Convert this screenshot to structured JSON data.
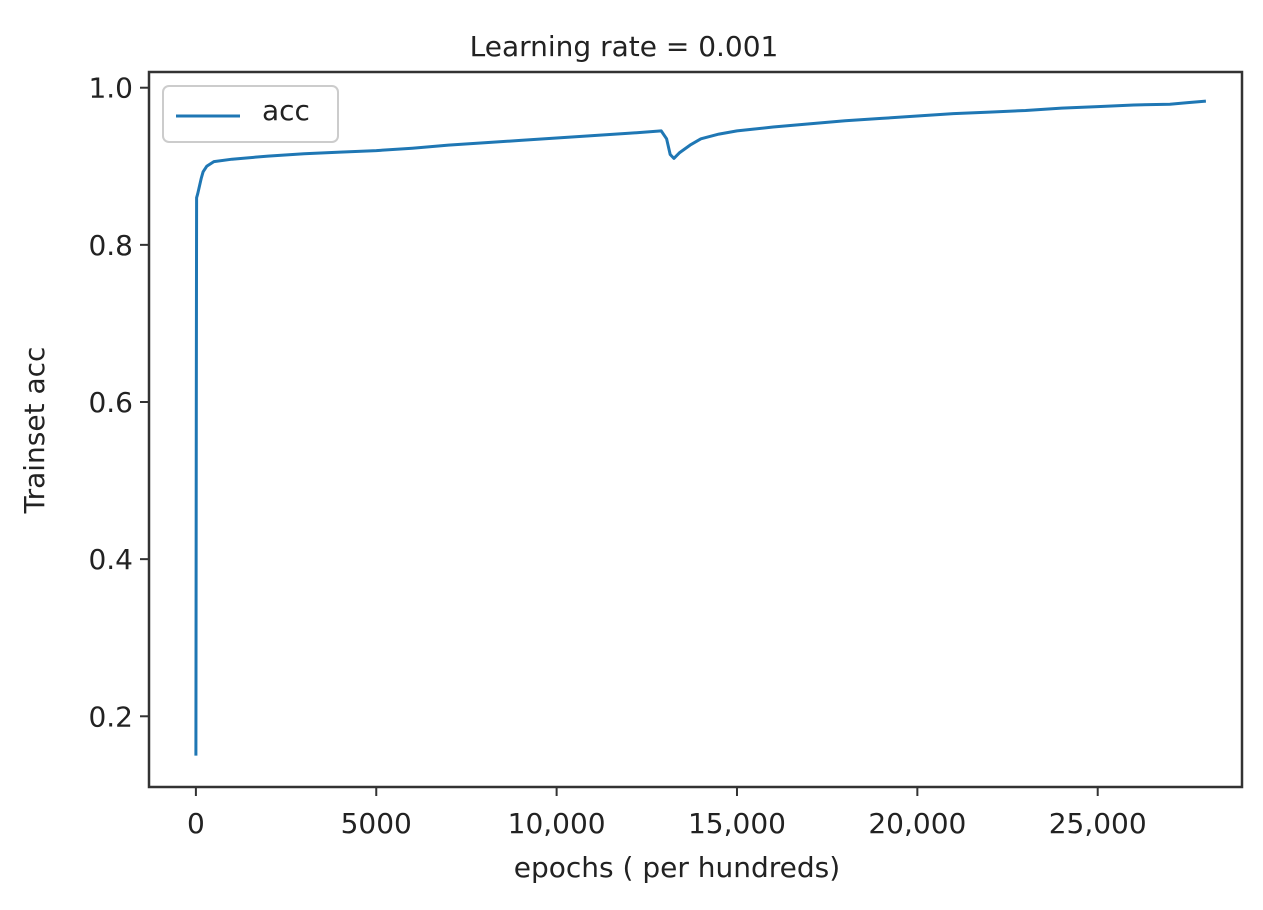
{
  "chart_data": {
    "type": "line",
    "title": "Learning rate = 0.001",
    "xlabel": "epochs ( per hundreds)",
    "ylabel": "Trainset acc",
    "xlim": [
      -1300,
      29000
    ],
    "ylim": [
      0.11,
      1.02
    ],
    "x_ticks": [
      {
        "value": 0,
        "label": "0"
      },
      {
        "value": 5000,
        "label": "5000"
      },
      {
        "value": 10000,
        "label": "10,000"
      },
      {
        "value": 15000,
        "label": "15,000"
      },
      {
        "value": 20000,
        "label": "20,000"
      },
      {
        "value": 25000,
        "label": "25,000"
      }
    ],
    "y_ticks": [
      {
        "value": 0.2,
        "label": "0.2"
      },
      {
        "value": 0.4,
        "label": "0.4"
      },
      {
        "value": 0.6,
        "label": "0.6"
      },
      {
        "value": 0.8,
        "label": "0.8"
      },
      {
        "value": 1.0,
        "label": "1.0"
      }
    ],
    "grid": false,
    "legend": {
      "position": "top-left",
      "entries": [
        "acc"
      ]
    },
    "series": [
      {
        "name": "acc",
        "color": "#1f77b4",
        "points": [
          [
            0,
            0.15
          ],
          [
            10,
            0.6
          ],
          [
            20,
            0.86
          ],
          [
            50,
            0.865
          ],
          [
            100,
            0.875
          ],
          [
            150,
            0.885
          ],
          [
            200,
            0.893
          ],
          [
            300,
            0.9
          ],
          [
            500,
            0.906
          ],
          [
            1000,
            0.909
          ],
          [
            2000,
            0.913
          ],
          [
            3000,
            0.916
          ],
          [
            4000,
            0.918
          ],
          [
            5000,
            0.92
          ],
          [
            6000,
            0.923
          ],
          [
            7000,
            0.927
          ],
          [
            8000,
            0.93
          ],
          [
            9000,
            0.933
          ],
          [
            10000,
            0.936
          ],
          [
            11000,
            0.939
          ],
          [
            12000,
            0.942
          ],
          [
            12900,
            0.945
          ],
          [
            13050,
            0.935
          ],
          [
            13150,
            0.915
          ],
          [
            13250,
            0.91
          ],
          [
            13400,
            0.917
          ],
          [
            13700,
            0.927
          ],
          [
            14000,
            0.935
          ],
          [
            14500,
            0.941
          ],
          [
            15000,
            0.945
          ],
          [
            16000,
            0.95
          ],
          [
            17000,
            0.954
          ],
          [
            18000,
            0.958
          ],
          [
            19000,
            0.961
          ],
          [
            20000,
            0.964
          ],
          [
            21000,
            0.967
          ],
          [
            22000,
            0.969
          ],
          [
            23000,
            0.971
          ],
          [
            24000,
            0.974
          ],
          [
            25000,
            0.976
          ],
          [
            26000,
            0.978
          ],
          [
            27000,
            0.979
          ],
          [
            27500,
            0.981
          ],
          [
            28000,
            0.983
          ]
        ]
      }
    ]
  }
}
